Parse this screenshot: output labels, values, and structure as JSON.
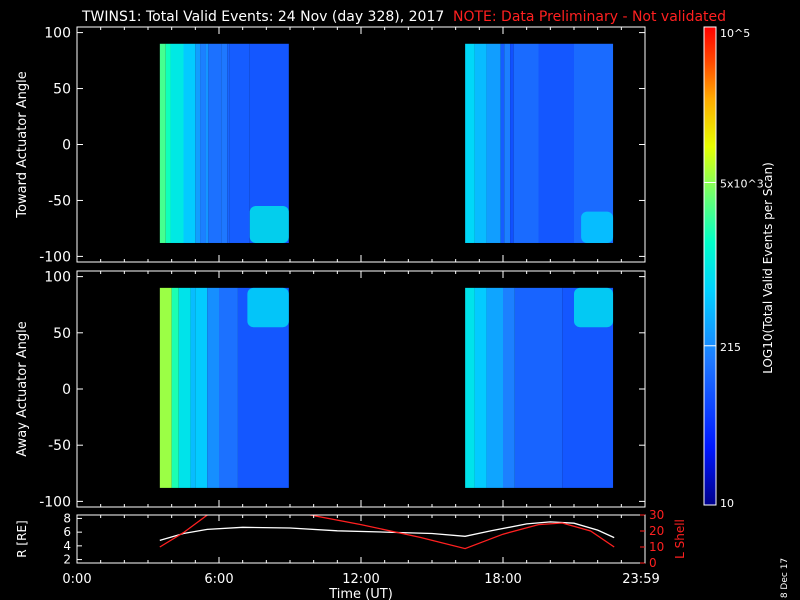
{
  "header": {
    "title": "TWINS1: Total Valid Events: 24 Nov (day 328), 2017",
    "note": "NOTE: Data Preliminary - Not validated",
    "note_color": "#ff2020"
  },
  "footer": {
    "date_stamp": "8 Dec 17"
  },
  "colorbar": {
    "label": "LOG10(Total Valid Events per Scan)",
    "ticks": [
      "10",
      "215",
      "5x10^3",
      "10^5"
    ],
    "range": [
      10,
      100000
    ],
    "scale": "log",
    "colormap": "rainbow"
  },
  "chart_data": [
    {
      "type": "heatmap",
      "ylabel": "Toward Actuator Angle",
      "yticks": [
        "100",
        "50",
        "0",
        "-50",
        "-100"
      ],
      "ylim": [
        -105,
        105
      ],
      "xlim": [
        0,
        24
      ],
      "x_units": "hours UT",
      "data_extent_y": [
        -88,
        90
      ],
      "intervals": [
        {
          "start": 3.5,
          "end": 8.95,
          "columns": [
            {
              "t0": 3.5,
              "t1": 3.75,
              "log": 3.45
            },
            {
              "t0": 3.75,
              "t1": 3.95,
              "log": 3.25
            },
            {
              "t0": 3.95,
              "t1": 4.5,
              "log": 3.0
            },
            {
              "t0": 4.5,
              "t1": 5.0,
              "log": 2.75
            },
            {
              "t0": 5.0,
              "t1": 5.2,
              "log": 2.45
            },
            {
              "t0": 5.2,
              "t1": 5.45,
              "log": 2.25
            },
            {
              "t0": 5.45,
              "t1": 5.55,
              "log": 2.4
            },
            {
              "t0": 5.55,
              "t1": 6.1,
              "log": 2.15
            },
            {
              "t0": 6.1,
              "t1": 6.35,
              "log": 2.2
            },
            {
              "t0": 6.35,
              "t1": 6.45,
              "log": 2.05
            },
            {
              "t0": 6.45,
              "t1": 7.3,
              "log": 2.0
            },
            {
              "t0": 7.3,
              "t1": 8.95,
              "log": 1.95
            }
          ],
          "hotspot": {
            "t0": 7.3,
            "t1": 8.95,
            "a0": -88,
            "a1": -55,
            "log": 2.95
          }
        },
        {
          "start": 16.4,
          "end": 22.65,
          "columns": [
            {
              "t0": 16.4,
              "t1": 16.8,
              "log": 2.85
            },
            {
              "t0": 16.8,
              "t1": 17.3,
              "log": 2.65
            },
            {
              "t0": 17.3,
              "t1": 17.9,
              "log": 2.45
            },
            {
              "t0": 17.9,
              "t1": 18.05,
              "log": 2.0
            },
            {
              "t0": 18.05,
              "t1": 18.3,
              "log": 2.25
            },
            {
              "t0": 18.3,
              "t1": 18.45,
              "log": 1.9
            },
            {
              "t0": 18.45,
              "t1": 19.5,
              "log": 2.1
            },
            {
              "t0": 19.5,
              "t1": 21.0,
              "log": 1.95
            },
            {
              "t0": 21.0,
              "t1": 22.65,
              "log": 2.1
            }
          ],
          "hotspot": {
            "t0": 21.3,
            "t1": 22.65,
            "a0": -88,
            "a1": -60,
            "log": 2.75
          }
        }
      ]
    },
    {
      "type": "heatmap",
      "ylabel": "Away Actuator Angle",
      "yticks": [
        "100",
        "50",
        "0",
        "-50",
        "-100"
      ],
      "ylim": [
        -105,
        105
      ],
      "xlim": [
        0,
        24
      ],
      "x_units": "hours UT",
      "data_extent_y": [
        -88,
        90
      ],
      "intervals": [
        {
          "start": 3.5,
          "end": 8.95,
          "columns": [
            {
              "t0": 3.5,
              "t1": 4.0,
              "log": 3.75
            },
            {
              "t0": 4.0,
              "t1": 4.3,
              "log": 3.3
            },
            {
              "t0": 4.3,
              "t1": 4.8,
              "log": 2.95
            },
            {
              "t0": 4.8,
              "t1": 5.0,
              "log": 2.65
            },
            {
              "t0": 5.0,
              "t1": 5.5,
              "log": 2.75
            },
            {
              "t0": 5.5,
              "t1": 6.0,
              "log": 2.35
            },
            {
              "t0": 6.0,
              "t1": 6.8,
              "log": 2.15
            },
            {
              "t0": 6.8,
              "t1": 8.95,
              "log": 1.95
            }
          ],
          "hotspot": {
            "t0": 7.2,
            "t1": 8.95,
            "a0": 55,
            "a1": 90,
            "log": 2.85
          }
        },
        {
          "start": 16.4,
          "end": 22.65,
          "columns": [
            {
              "t0": 16.4,
              "t1": 16.8,
              "log": 2.95
            },
            {
              "t0": 16.8,
              "t1": 17.3,
              "log": 2.75
            },
            {
              "t0": 17.3,
              "t1": 18.0,
              "log": 2.5
            },
            {
              "t0": 18.0,
              "t1": 18.5,
              "log": 2.25
            },
            {
              "t0": 18.5,
              "t1": 20.5,
              "log": 2.05
            },
            {
              "t0": 20.5,
              "t1": 22.65,
              "log": 1.95
            }
          ],
          "hotspot": {
            "t0": 21.0,
            "t1": 22.65,
            "a0": 55,
            "a1": 90,
            "log": 2.9
          }
        }
      ]
    },
    {
      "type": "line",
      "ylabel": "R [RE]",
      "yticks": [
        "8",
        "6",
        "4",
        "2"
      ],
      "ylim": [
        1.5,
        8.5
      ],
      "y2label": "L Shell",
      "y2ticks": [
        "30",
        "20",
        "10",
        "0"
      ],
      "y2lim": [
        0,
        30
      ],
      "xlabel": "Time (UT)",
      "xticks": [
        "0:00",
        "6:00",
        "12:00",
        "18:00",
        "23:59"
      ],
      "xlim": [
        0,
        24
      ],
      "series": [
        {
          "color": "#ffffff",
          "axis": "left",
          "x": [
            3.5,
            4.5,
            5.5,
            7.0,
            9.0,
            11.0,
            13.0,
            15.0,
            16.4,
            17.5,
            19.0,
            20.0,
            21.0,
            22.0,
            22.7
          ],
          "y": [
            4.8,
            5.8,
            6.4,
            6.7,
            6.6,
            6.2,
            6.0,
            5.8,
            5.4,
            6.2,
            7.2,
            7.5,
            7.3,
            6.3,
            5.2
          ]
        },
        {
          "color": "#ff2020",
          "axis": "right",
          "segments": [
            {
              "x": [
                3.5,
                4.5,
                5.6
              ],
              "y": [
                10,
                19,
                31
              ]
            },
            {
              "x": [
                9.5,
                12.0,
                14.5,
                16.4,
                18.0,
                19.5,
                20.5,
                21.7,
                22.7
              ],
              "y": [
                31,
                24,
                16,
                9,
                18,
                24,
                25,
                20,
                10
              ]
            }
          ]
        }
      ]
    }
  ]
}
